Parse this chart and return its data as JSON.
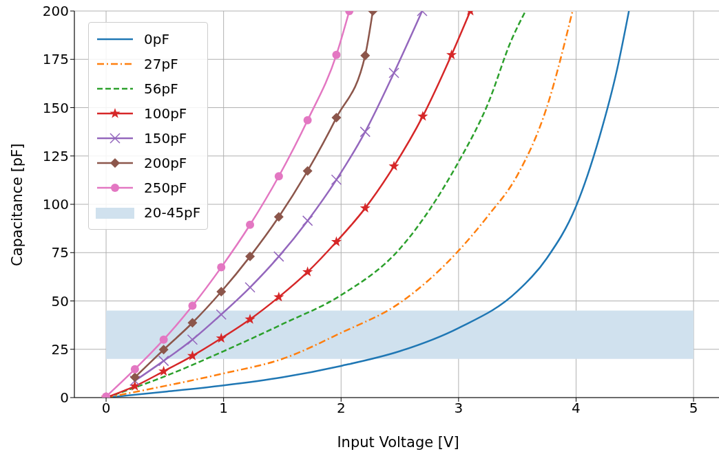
{
  "chart_data": {
    "type": "line",
    "xlabel": "Input Voltage [V]",
    "ylabel": "Capacitance [pF]",
    "xlim": [
      -0.27,
      5.24
    ],
    "xticks": [
      0,
      1,
      2,
      3,
      4,
      5
    ],
    "ylim": [
      0,
      200
    ],
    "yticks": [
      0,
      25,
      50,
      75,
      100,
      125,
      150,
      175,
      200
    ],
    "grid": true,
    "legend": "top left",
    "bands": [
      {
        "axis": "y",
        "from": 20,
        "to": 45,
        "label": "20-45pF",
        "color": "#d0e1ee"
      }
    ],
    "series": [
      {
        "name": "0pF",
        "color": "#1f77b4",
        "marker": "none",
        "line_style": "solid",
        "x": [
          0,
          0.5,
          1,
          1.5,
          2,
          2.5,
          3,
          3.5,
          3.75,
          4,
          4.2,
          4.35,
          4.45
        ],
        "values": [
          0,
          3,
          6.3,
          10.5,
          16.4,
          24,
          36,
          55,
          72,
          99,
          135,
          170,
          200
        ]
      },
      {
        "name": "27pF",
        "color": "#ff7f0e",
        "marker": "none",
        "line_style": "dashdot",
        "x": [
          0,
          0.5,
          1,
          1.5,
          2,
          2.5,
          3,
          3.25,
          3.5,
          3.75,
          3.97
        ],
        "values": [
          0,
          6,
          12.5,
          20,
          33.5,
          49,
          76,
          94,
          115,
          150,
          200
        ]
      },
      {
        "name": "56pF",
        "color": "#2ca02c",
        "marker": "none",
        "line_style": "dashed",
        "x": [
          0,
          0.5,
          1,
          1.5,
          2,
          2.5,
          3,
          3.25,
          3.45,
          3.57
        ],
        "values": [
          0,
          11,
          24,
          38,
          53,
          77,
          122,
          152,
          185,
          200
        ]
      },
      {
        "name": "100pF",
        "color": "#d62728",
        "marker": "star",
        "line_style": "solid",
        "x": [
          0,
          0.245,
          0.49,
          0.735,
          0.98,
          1.225,
          1.47,
          1.715,
          1.96,
          2.205,
          2.45,
          2.695,
          2.94,
          3.1
        ],
        "values": [
          0,
          5.9,
          13.6,
          21.6,
          30.7,
          40.5,
          52,
          65,
          80.6,
          98,
          119.7,
          145.5,
          177.3,
          200
        ]
      },
      {
        "name": "150pF",
        "color": "#9467bd",
        "marker": "cross",
        "line_style": "solid",
        "x": [
          0.245,
          0.49,
          0.735,
          0.98,
          1.225,
          1.47,
          1.715,
          1.96,
          2.205,
          2.45,
          2.69
        ],
        "values": [
          8.7,
          19,
          30,
          43,
          57,
          73,
          91.5,
          112.7,
          137.5,
          168,
          200
        ]
      },
      {
        "name": "200pF",
        "color": "#8c564b",
        "marker": "diamond",
        "line_style": "solid",
        "x": [
          0.245,
          0.49,
          0.735,
          0.98,
          1.225,
          1.47,
          1.715,
          1.96,
          2.205,
          2.27
        ],
        "values": [
          10.5,
          24.8,
          38.7,
          54.8,
          73,
          93.5,
          117.3,
          144.8,
          177,
          200
        ]
      },
      {
        "name": "250pF",
        "color": "#e377c2",
        "marker": "circle",
        "line_style": "solid",
        "x": [
          0,
          0.245,
          0.49,
          0.735,
          0.98,
          1.225,
          1.47,
          1.715,
          1.96,
          2.07
        ],
        "values": [
          0.5,
          14.7,
          30,
          47.5,
          67.4,
          89.4,
          114.5,
          143.5,
          177.3,
          200
        ]
      }
    ]
  }
}
